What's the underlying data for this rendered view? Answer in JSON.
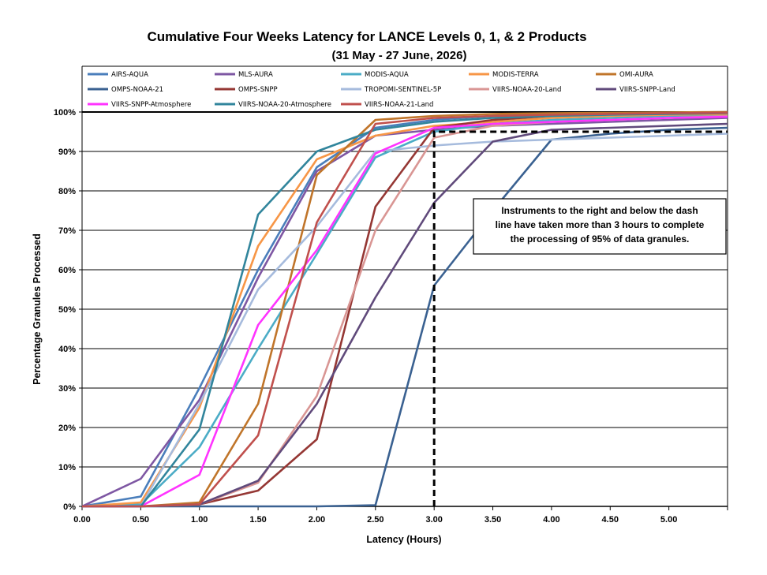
{
  "chart_data": {
    "type": "line",
    "title": "Cumulative Four Weeks Latency  for LANCE Levels 0, 1, & 2 Products",
    "subtitle": "(31  May   - 27  June,  2026)",
    "xlabel": "Latency (Hours)",
    "ylabel": "Percentage Granules Processed",
    "xlim": [
      0,
      5.5
    ],
    "ylim": [
      0,
      100
    ],
    "x_ticks": [
      "0.00",
      "0.50",
      "1.00",
      "1.50",
      "2.00",
      "2.50",
      "3.00",
      "3.50",
      "4.00",
      "4.50",
      "5.00"
    ],
    "y_ticks": [
      "0%",
      "10%",
      "20%",
      "30%",
      "40%",
      "50%",
      "60%",
      "70%",
      "80%",
      "90%",
      "100%"
    ],
    "grid": "horizontal",
    "legend_position": "top",
    "x": [
      0,
      0.5,
      1.0,
      1.5,
      2.0,
      2.5,
      3.0,
      3.5,
      4.0,
      4.5,
      5.0,
      5.5
    ],
    "series": [
      {
        "name": "AIRS-AQUA",
        "color": "#4a7ebb",
        "values": [
          0,
          2.5,
          30,
          60,
          86,
          96,
          98,
          99,
          99.5,
          99.7,
          99.8,
          100
        ]
      },
      {
        "name": "MLS-AURA",
        "color": "#7e57a3",
        "values": [
          0,
          7,
          27,
          58,
          85,
          94,
          95.5,
          96.5,
          97,
          97.5,
          98,
          98.5
        ]
      },
      {
        "name": "MODIS-AQUA",
        "color": "#4bacc6",
        "values": [
          0,
          0.5,
          15,
          40,
          64,
          88.5,
          95,
          97,
          98,
          98.5,
          99,
          99.3
        ]
      },
      {
        "name": "MODIS-TERRA",
        "color": "#f79646",
        "values": [
          0,
          1,
          25,
          66,
          88,
          94,
          96.5,
          97.5,
          98.5,
          99,
          99.3,
          99.5
        ]
      },
      {
        "name": "OMI-AURA",
        "color": "#c0752a",
        "values": [
          0,
          0,
          1,
          26,
          84,
          98,
          99,
          99.5,
          99.7,
          99.8,
          99.9,
          100
        ]
      },
      {
        "name": "OMPS-NOAA-21",
        "color": "#3a6191",
        "values": [
          0,
          0,
          0,
          0,
          0,
          0.3,
          56,
          75,
          93,
          94.5,
          95.5,
          96
        ]
      },
      {
        "name": "OMPS-SNPP",
        "color": "#953734",
        "values": [
          0,
          0,
          0.5,
          4,
          17,
          76,
          96,
          98,
          99,
          99.5,
          99.7,
          99.8
        ]
      },
      {
        "name": "TROPOMI-SENTINEL-5P",
        "color": "#a6bbdd",
        "values": [
          0,
          0,
          26,
          55,
          71,
          90,
          91.5,
          92.5,
          93,
          93.5,
          94,
          94.5
        ]
      },
      {
        "name": "VIIRS-NOAA-20-Land",
        "color": "#d99694",
        "values": [
          0,
          0,
          0.5,
          6,
          28,
          70,
          93.5,
          96.5,
          97.5,
          98,
          98.5,
          99
        ]
      },
      {
        "name": "VIIRS-SNPP-Land",
        "color": "#604a7b",
        "values": [
          0,
          0,
          0.5,
          6.5,
          26,
          53,
          77,
          92.5,
          95.5,
          96,
          96.5,
          97
        ]
      },
      {
        "name": "VIIRS-SNPP-Atmosphere",
        "color": "#ff33ff",
        "values": [
          0,
          0,
          8,
          46,
          65,
          89.5,
          96,
          97,
          97.5,
          98,
          98.5,
          98.8
        ]
      },
      {
        "name": "VIIRS-NOAA-20-Atmosphere",
        "color": "#31859c",
        "values": [
          0,
          0,
          19.5,
          74,
          90,
          95.5,
          97.5,
          98.5,
          99,
          99.3,
          99.5,
          99.7
        ]
      },
      {
        "name": "VIIRS-NOAA-21-Land",
        "color": "#c0504d",
        "values": [
          0,
          0,
          0.5,
          18,
          72,
          97,
          98.5,
          99,
          99.3,
          99.5,
          99.7,
          99.8
        ]
      }
    ],
    "threshold_line": {
      "x": 3.0,
      "y": 95,
      "style": "dashed"
    },
    "annotation": {
      "lines": [
        "Instruments to the right and below the dash",
        "line have taken more than 3 hours to complete",
        "the processing of 95% of data granules."
      ]
    }
  }
}
